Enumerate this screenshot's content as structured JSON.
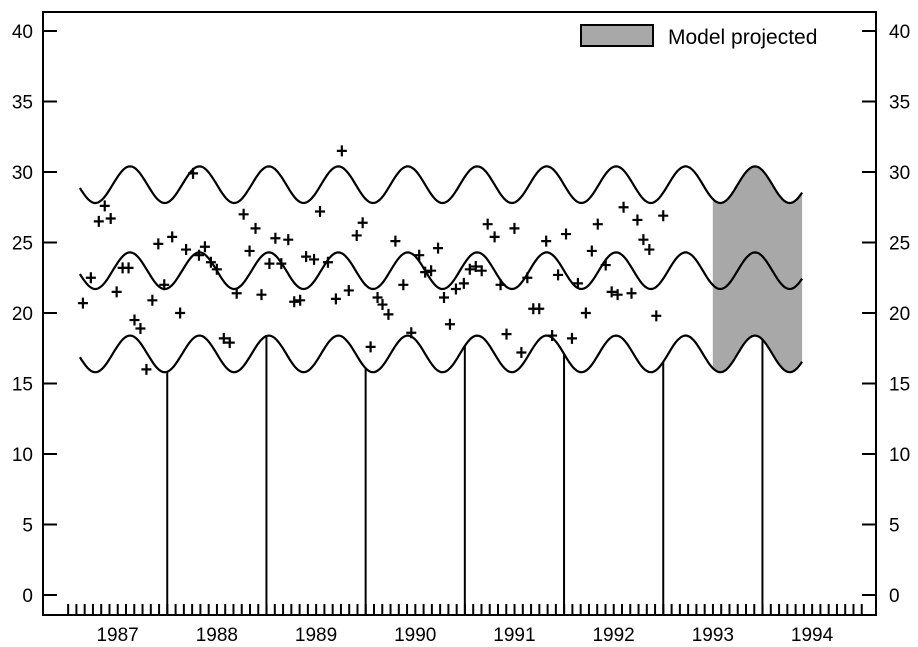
{
  "chart_data": {
    "type": "scatter",
    "title": "",
    "xlabel": "",
    "ylabel": "",
    "ylim": [
      0,
      40
    ],
    "x_range": [
      1986.55,
      1994.5
    ],
    "x_ticks": [
      1987,
      1988,
      1989,
      1990,
      1991,
      1992,
      1993,
      1994
    ],
    "x_tick_labels": [
      "1987",
      "1988",
      "1989",
      "1990",
      "1991",
      "1992",
      "1993",
      "1994"
    ],
    "y_ticks": [
      0,
      5,
      10,
      15,
      20,
      25,
      30,
      35,
      40
    ],
    "y_tick_labels": [
      "0",
      "5",
      "10",
      "15",
      "20",
      "25",
      "30",
      "35",
      "40"
    ],
    "right_axis_mirrored": true,
    "grid": false,
    "legend": {
      "position": "top-right",
      "label": "Model projected",
      "color": "#a8a8a8"
    },
    "projection_range": [
      1993.0,
      1993.9
    ],
    "year_markers": [
      1987.5,
      1988.5,
      1989.5,
      1990.5,
      1991.5,
      1992.5,
      1993.5
    ],
    "curves": {
      "period_years": 0.7,
      "amplitude": 1.3,
      "phase_year": 1986.95,
      "centers": [
        17.1,
        23.0,
        29.1
      ],
      "x_start": 1986.62,
      "x_end": 1993.9
    },
    "series": [
      {
        "marker": "+",
        "points": [
          [
            1986.65,
            20.7
          ],
          [
            1986.73,
            22.5
          ],
          [
            1986.81,
            26.5
          ],
          [
            1986.87,
            27.6
          ],
          [
            1986.93,
            26.7
          ],
          [
            1986.99,
            21.5
          ],
          [
            1987.05,
            23.2
          ],
          [
            1987.11,
            23.2
          ],
          [
            1987.17,
            19.5
          ],
          [
            1987.23,
            18.9
          ],
          [
            1987.29,
            16.0
          ],
          [
            1987.35,
            20.9
          ],
          [
            1987.41,
            24.9
          ],
          [
            1987.47,
            22.0
          ],
          [
            1987.55,
            25.4
          ],
          [
            1987.63,
            20.0
          ],
          [
            1987.69,
            24.5
          ],
          [
            1987.76,
            29.9
          ],
          [
            1987.82,
            24.1
          ],
          [
            1987.88,
            24.7
          ],
          [
            1987.94,
            23.6
          ],
          [
            1988.0,
            23.1
          ],
          [
            1988.07,
            18.2
          ],
          [
            1988.13,
            17.9
          ],
          [
            1988.2,
            21.4
          ],
          [
            1988.27,
            27.0
          ],
          [
            1988.33,
            24.4
          ],
          [
            1988.39,
            26.0
          ],
          [
            1988.45,
            21.3
          ],
          [
            1988.53,
            23.5
          ],
          [
            1988.59,
            25.3
          ],
          [
            1988.65,
            23.5
          ],
          [
            1988.72,
            25.2
          ],
          [
            1988.78,
            20.8
          ],
          [
            1988.84,
            20.9
          ],
          [
            1988.9,
            24.0
          ],
          [
            1988.98,
            23.8
          ],
          [
            1989.04,
            27.2
          ],
          [
            1989.12,
            23.6
          ],
          [
            1989.2,
            21.0
          ],
          [
            1989.26,
            31.5
          ],
          [
            1989.33,
            21.6
          ],
          [
            1989.41,
            25.5
          ],
          [
            1989.47,
            26.4
          ],
          [
            1989.55,
            17.6
          ],
          [
            1989.62,
            21.1
          ],
          [
            1989.67,
            20.6
          ],
          [
            1989.73,
            19.9
          ],
          [
            1989.8,
            25.1
          ],
          [
            1989.88,
            22.0
          ],
          [
            1989.96,
            18.6
          ],
          [
            1990.04,
            24.1
          ],
          [
            1990.1,
            22.9
          ],
          [
            1990.16,
            23.0
          ],
          [
            1990.23,
            24.6
          ],
          [
            1990.29,
            21.1
          ],
          [
            1990.35,
            19.2
          ],
          [
            1990.41,
            21.7
          ],
          [
            1990.49,
            22.1
          ],
          [
            1990.55,
            23.1
          ],
          [
            1990.61,
            23.3
          ],
          [
            1990.67,
            23.0
          ],
          [
            1990.73,
            26.3
          ],
          [
            1990.8,
            25.4
          ],
          [
            1990.86,
            22.0
          ],
          [
            1990.92,
            18.5
          ],
          [
            1991.0,
            26.0
          ],
          [
            1991.07,
            17.2
          ],
          [
            1991.13,
            22.5
          ],
          [
            1991.19,
            20.3
          ],
          [
            1991.25,
            20.3
          ],
          [
            1991.32,
            25.1
          ],
          [
            1991.38,
            18.4
          ],
          [
            1991.44,
            22.7
          ],
          [
            1991.52,
            25.6
          ],
          [
            1991.58,
            18.2
          ],
          [
            1991.64,
            22.1
          ],
          [
            1991.72,
            20.0
          ],
          [
            1991.78,
            24.4
          ],
          [
            1991.84,
            26.3
          ],
          [
            1991.92,
            23.4
          ],
          [
            1991.98,
            21.5
          ],
          [
            1992.04,
            21.3
          ],
          [
            1992.1,
            27.5
          ],
          [
            1992.18,
            21.4
          ],
          [
            1992.24,
            26.6
          ],
          [
            1992.3,
            25.2
          ],
          [
            1992.36,
            24.5
          ],
          [
            1992.43,
            19.8
          ],
          [
            1992.5,
            26.9
          ]
        ]
      }
    ]
  }
}
